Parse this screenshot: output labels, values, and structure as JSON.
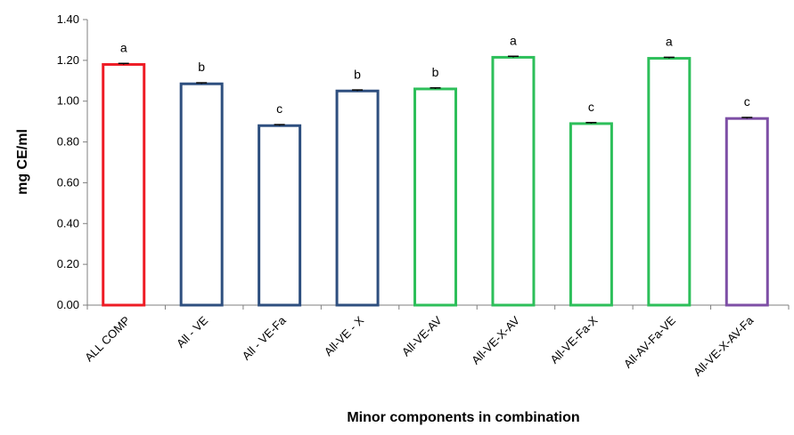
{
  "chart_data": {
    "type": "bar",
    "title": "",
    "xlabel": "Minor components  in combination",
    "ylabel": "mg CE/ml",
    "ylim": [
      0,
      1.4
    ],
    "yticks": [
      "0.00",
      "0.20",
      "0.40",
      "0.60",
      "0.80",
      "1.00",
      "1.20",
      "1.40"
    ],
    "grid": false,
    "legend": "none",
    "categories": [
      "ALL COMP",
      "All - VE",
      "All - VE-Fa",
      "All-VE - X",
      "All-VE-AV",
      "All-VE-X-AV",
      "All-VE-Fa-X",
      "All-AV-Fa-VE",
      "All-VE-X-AV-Fa"
    ],
    "values": [
      1.18,
      1.085,
      0.88,
      1.05,
      1.06,
      1.215,
      0.89,
      1.21,
      0.915
    ],
    "errors": [
      0.005,
      0.005,
      0.005,
      0.005,
      0.005,
      0.005,
      0.005,
      0.005,
      0.005
    ],
    "significance": [
      "a",
      "b",
      "c",
      "b",
      "b",
      "a",
      "c",
      "a",
      "c"
    ],
    "bar_colors": [
      "#ee1c25",
      "#2e4f7f",
      "#2e4f7f",
      "#2e4f7f",
      "#2dbf5a",
      "#2dbf5a",
      "#2dbf5a",
      "#2dbf5a",
      "#7e4fa6"
    ],
    "bar_fill": "#ffffff"
  }
}
